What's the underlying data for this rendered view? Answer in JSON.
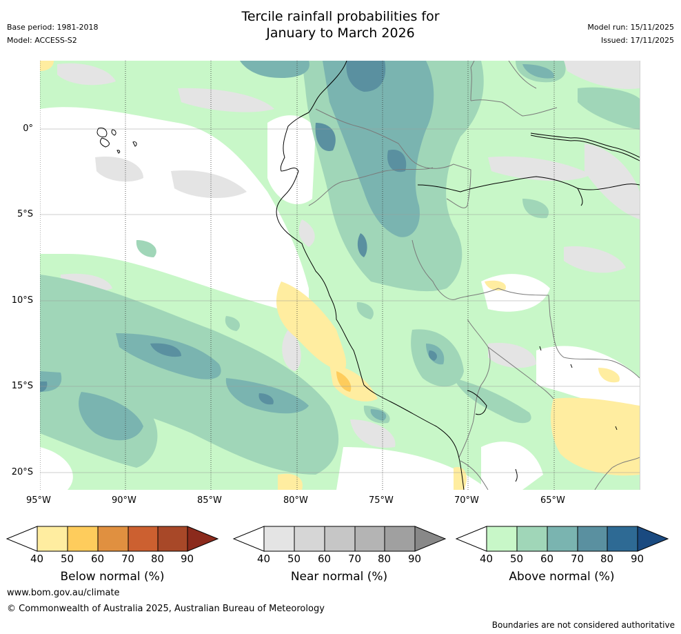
{
  "title": {
    "line1": "Tercile rainfall probabilities for",
    "line2": "January to March 2026"
  },
  "meta": {
    "base_period": "Base period: 1981-2018",
    "model": "Model: ACCESS-S2",
    "model_run": "Model run: 15/11/2025",
    "issued": "Issued: 17/11/2025"
  },
  "map": {
    "lat_labels": [
      "0°",
      "5°S",
      "10°S",
      "15°S",
      "20°S"
    ],
    "lon_labels": [
      "95°W",
      "90°W",
      "85°W",
      "80°W",
      "75°W",
      "70°W",
      "65°W"
    ]
  },
  "legend": {
    "ticks": [
      "40",
      "50",
      "60",
      "70",
      "80",
      "90"
    ],
    "below": {
      "title": "Below normal (%)",
      "colors": [
        "#ffffff",
        "#ffeda0",
        "#fecc5c",
        "#e09040",
        "#cc6030",
        "#a84828",
        "#8b2a1c"
      ]
    },
    "near": {
      "title": "Near normal (%)",
      "colors": [
        "#ffffff",
        "#e4e4e4",
        "#d6d6d6",
        "#c6c6c6",
        "#b4b4b4",
        "#a0a0a0",
        "#888888"
      ]
    },
    "above": {
      "title": "Above normal (%)",
      "colors": [
        "#ffffff",
        "#c8f7c8",
        "#a0d6b8",
        "#7ab4b0",
        "#5a90a0",
        "#2e6a94",
        "#1a4a80"
      ]
    }
  },
  "footer": {
    "website": "www.bom.gov.au/climate",
    "copyright": "© Commonwealth of Australia 2025, Australian Bureau of Meteorology",
    "disclaimer": "Boundaries are not considered authoritative"
  }
}
